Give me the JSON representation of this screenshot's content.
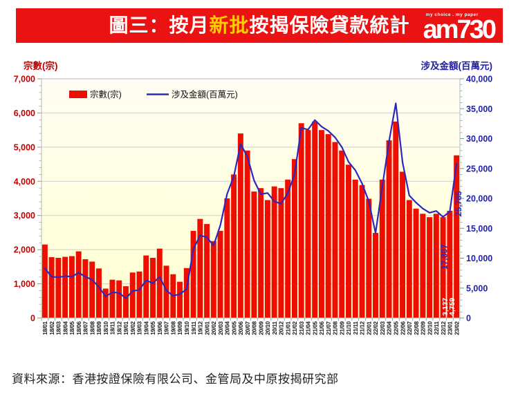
{
  "banner": {
    "title_prefix": "圖三：按月",
    "title_highlight": "新批",
    "title_suffix": "按揭保險貸款統計",
    "highlight_color": "#ffcc00",
    "bg_color": "#ea1212",
    "logo_tagline": "my choice . my paper",
    "logo_text": "am730"
  },
  "chart": {
    "left_axis": {
      "title": "宗數(宗)",
      "color": "#c00000",
      "tick_labels": [
        "0",
        "1,000",
        "2,000",
        "3,000",
        "4,000",
        "5,000",
        "6,000",
        "7,000"
      ]
    },
    "right_axis": {
      "title": "涉及金額(百萬元)",
      "color": "#2020a8",
      "tick_labels": [
        "0",
        "5,000",
        "10,000",
        "15,000",
        "20,000",
        "25,000",
        "30,000",
        "35,000",
        "40,000"
      ]
    },
    "legend": [
      {
        "label": "宗數(宗)",
        "type": "bar",
        "color": "#ee0e00"
      },
      {
        "label": "涉及金額(百萬元)",
        "type": "line",
        "color": "#2b28bd"
      }
    ]
  },
  "chart_data": {
    "type": "bar",
    "title": "圖三：按月新批按揭保險貸款統計",
    "categories": [
      "18/01",
      "18/02",
      "18/03",
      "18/04",
      "18/05",
      "18/06",
      "18/07",
      "18/08",
      "18/09",
      "18/10",
      "18/11",
      "18/12",
      "19/01",
      "19/02",
      "19/03",
      "19/04",
      "19/05",
      "19/06",
      "19/07",
      "19/08",
      "19/09",
      "19/10",
      "19/11",
      "19/12",
      "20/01",
      "20/02",
      "20/03",
      "20/04",
      "20/05",
      "20/06",
      "20/07",
      "20/08",
      "20/09",
      "20/10",
      "20/11",
      "20/12",
      "21/01",
      "21/02",
      "21/03",
      "21/04",
      "21/05",
      "21/06",
      "21/07",
      "21/08",
      "21/09",
      "21/10",
      "21/11",
      "21/12",
      "22/01",
      "22/02",
      "22/03",
      "22/04",
      "22/05",
      "22/06",
      "22/07",
      "22/08",
      "22/09",
      "22/10",
      "22/11",
      "22/12",
      "23/01",
      "23/02"
    ],
    "series": [
      {
        "name": "宗數(宗)",
        "type": "bar",
        "axis": "left",
        "color": "#ee0e00",
        "values": [
          2150,
          1780,
          1760,
          1790,
          1810,
          1950,
          1720,
          1650,
          1450,
          860,
          1120,
          1100,
          930,
          1330,
          1360,
          1830,
          1760,
          2030,
          1530,
          1280,
          1060,
          1460,
          2550,
          2900,
          2750,
          2250,
          2550,
          3500,
          4200,
          5400,
          4900,
          3700,
          3800,
          3450,
          3850,
          3800,
          4050,
          4650,
          5700,
          5500,
          5750,
          5500,
          5380,
          5150,
          4900,
          4485,
          4050,
          3890,
          3490,
          2490,
          4050,
          5200,
          5750,
          4280,
          3450,
          3200,
          3050,
          2950,
          3050,
          2950,
          3137,
          4759
        ]
      },
      {
        "name": "涉及金額(百萬元)",
        "type": "line",
        "axis": "right",
        "color": "#2b28bd",
        "values": [
          8300,
          6900,
          6800,
          7000,
          6900,
          7600,
          6900,
          6400,
          5200,
          3600,
          4300,
          4200,
          3300,
          4500,
          4700,
          6300,
          5800,
          6900,
          4600,
          3700,
          4000,
          4800,
          11500,
          13800,
          13500,
          12100,
          15500,
          20700,
          23700,
          29100,
          27000,
          23000,
          20700,
          20900,
          19500,
          19100,
          20900,
          24000,
          31800,
          31500,
          33100,
          32000,
          31300,
          30200,
          28600,
          26100,
          24700,
          22500,
          19500,
          14200,
          22000,
          29500,
          35900,
          26000,
          20500,
          19300,
          18300,
          17600,
          17900,
          16900,
          17807,
          25785
        ]
      }
    ],
    "annotations": [
      {
        "category": "23/01",
        "target": "line",
        "text": "17,807",
        "color": "#2b28bd"
      },
      {
        "category": "23/02",
        "target": "line",
        "text": "25,785",
        "color": "#2b28bd"
      },
      {
        "category": "23/01",
        "target": "bar",
        "text": "3,137",
        "color": "#ffffff"
      },
      {
        "category": "23/02",
        "target": "bar",
        "text": "4,759",
        "color": "#ffffff"
      }
    ],
    "left_ylim": [
      0,
      7000
    ],
    "right_ylim": [
      0,
      40000
    ],
    "grid": true,
    "legend_position": "top-left",
    "plot_bg": [
      "#fffdf4",
      "#ffffdf",
      "#ffffd2"
    ]
  },
  "source": {
    "text": "資料來源：香港按證保險有限公司、金管局及中原按揭研究部"
  }
}
